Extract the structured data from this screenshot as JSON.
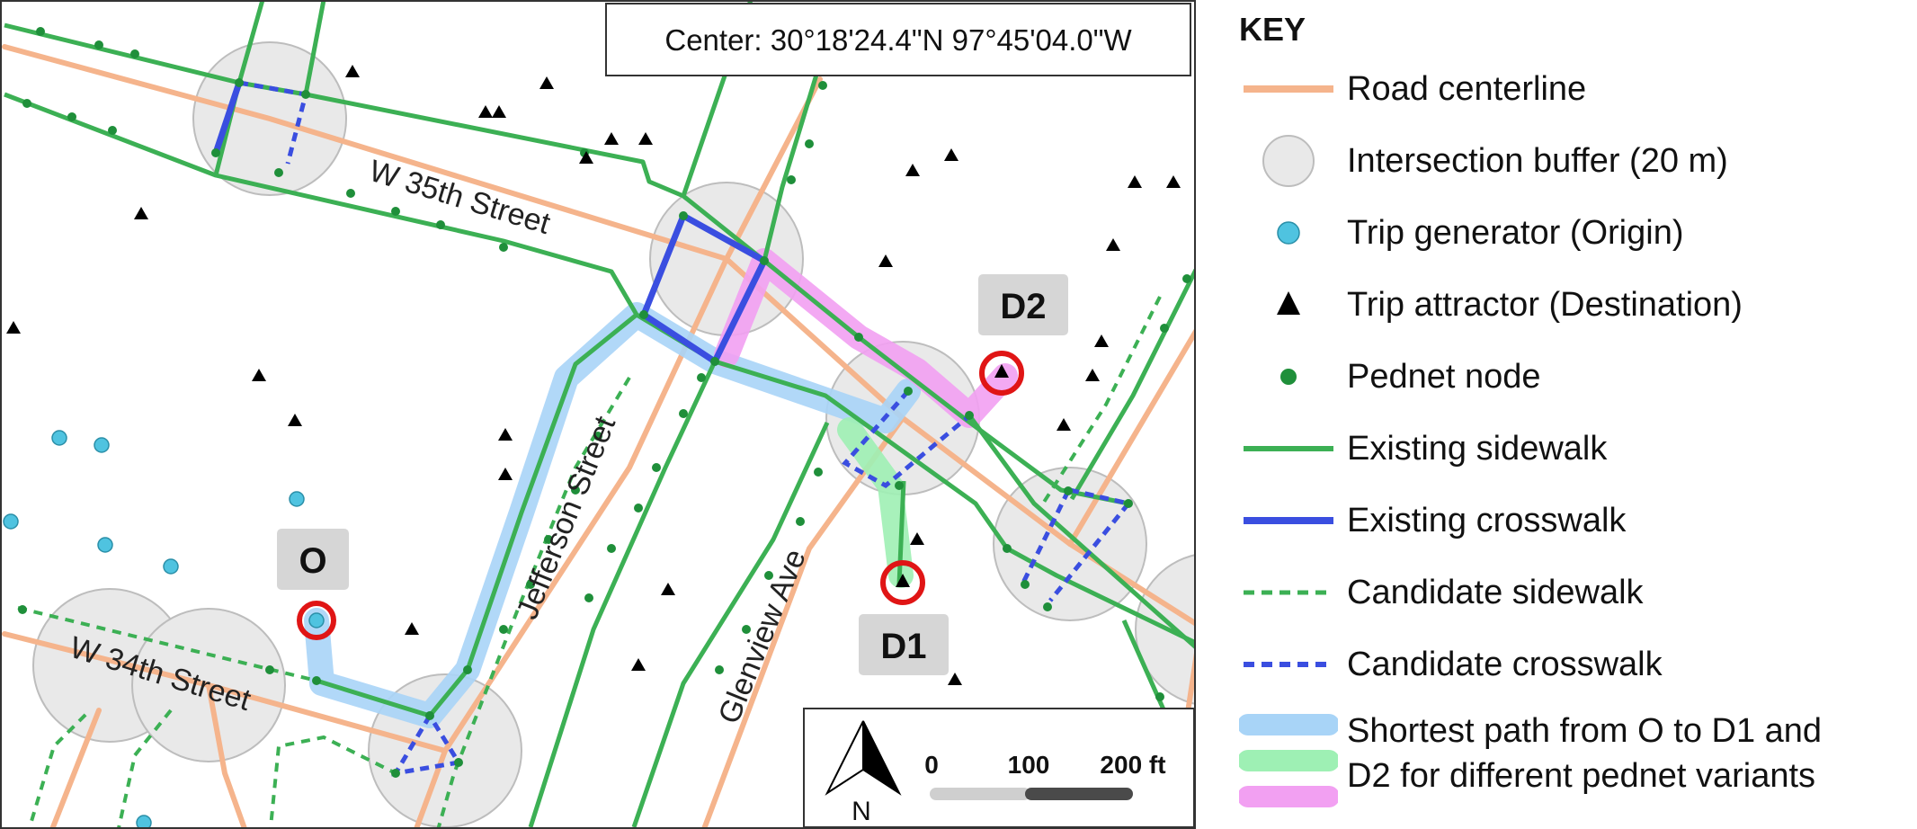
{
  "map": {
    "center_label": "Center: 30°18'24.4\"N 97°45'04.0\"W",
    "streets": {
      "w35": "W 35th Street",
      "w34": "W 34th Street",
      "jefferson": "Jefferson Street",
      "glenview": "Glenview Ave"
    },
    "points": {
      "origin": "O",
      "dest1": "D1",
      "dest2": "D2"
    },
    "scale": {
      "tick0": "0",
      "tick1": "100",
      "tick2": "200 ft"
    },
    "north_label": "N"
  },
  "legend": {
    "title": "KEY",
    "items": [
      {
        "label": "Road centerline",
        "color": "#f5b48c"
      },
      {
        "label": "Intersection buffer (20 m)",
        "color": "#e6e6e6"
      },
      {
        "label": "Trip generator (Origin)",
        "color": "#4fc3e0"
      },
      {
        "label": "Trip attractor (Destination)",
        "color": "#000000"
      },
      {
        "label": "Pednet node",
        "color": "#1f8f3a"
      },
      {
        "label": "Existing sidewalk",
        "color": "#3cb054"
      },
      {
        "label": "Existing crosswalk",
        "color": "#3a4ee0"
      },
      {
        "label": "Candidate sidewalk",
        "color": "#3cb054"
      },
      {
        "label": "Candidate crosswalk",
        "color": "#3a4ee0"
      }
    ],
    "path_label_line1": "Shortest path from O to D1 and",
    "path_label_line2": "D2 for different pednet variants",
    "path_colors": [
      "#a8d4f7",
      "#9ef0b4",
      "#f2a0f2"
    ]
  }
}
